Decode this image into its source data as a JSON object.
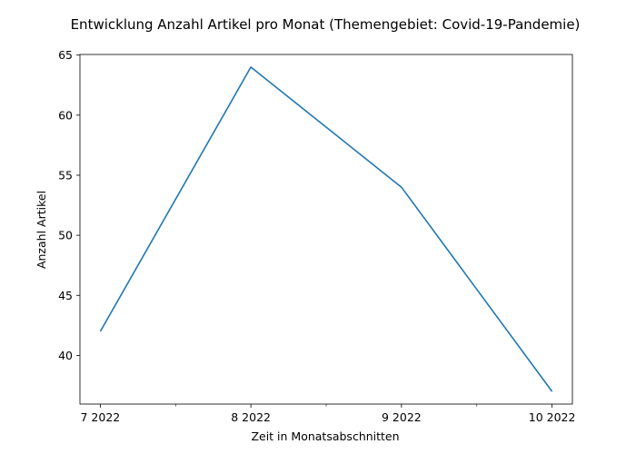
{
  "chart_data": {
    "type": "line",
    "title": "Entwicklung Anzahl Artikel pro Monat (Themengebiet: Covid-19-Pandemie)",
    "xlabel": "Zeit in Monatsabschnitten",
    "ylabel": "Anzahl Artikel",
    "categories": [
      "7 2022",
      "8 2022",
      "9 2022",
      "10 2022"
    ],
    "series": [
      {
        "values": [
          42,
          64,
          54,
          37
        ],
        "color": "#1f77b4"
      }
    ],
    "ylim": [
      35.95,
      65.05
    ],
    "yticks": [
      40,
      45,
      50,
      55,
      60,
      65
    ],
    "minor_xticks": [
      0.5,
      1.5,
      2.5
    ],
    "grid": false,
    "legend": "none"
  }
}
